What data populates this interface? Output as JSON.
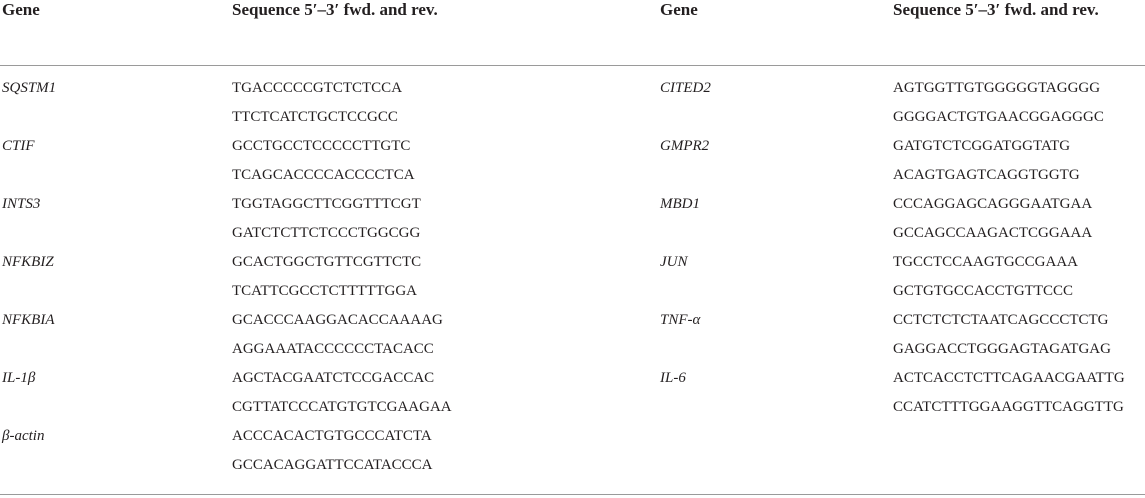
{
  "table": {
    "columns": [
      "Gene",
      "Sequence 5′–3′ fwd. and rev.",
      "Gene",
      "Sequence 5′–3′ fwd. and rev."
    ],
    "left_rows": [
      {
        "gene": "SQSTM1",
        "fwd": "TGACCCCCGTCTCTCCA",
        "rev": "TTCTCATCTGCTCCGCC"
      },
      {
        "gene": "CTIF",
        "fwd": "GCCTGCCTCCCCCTTGTC",
        "rev": "TCAGCACCCCACCCCTCA"
      },
      {
        "gene": "INTS3",
        "fwd": "TGGTAGGCTTCGGTTTCGT",
        "rev": "GATCTCTTCTCCCTGGCGG"
      },
      {
        "gene": "NFKBIZ",
        "fwd": "GCACTGGCTGTTCGTTCTC",
        "rev": "TCATTCGCCTCTTTTTGGA"
      },
      {
        "gene": "NFKBIA",
        "fwd": "GCACCCAAGGACACCAAAAG",
        "rev": "AGGAAATACCCCCCTACACC"
      },
      {
        "gene": "IL-1β",
        "fwd": "AGCTACGAATCTCCGACCAC",
        "rev": "CGTTATCCCATGTGTCGAAGAA"
      },
      {
        "gene": "β-actin",
        "fwd": "ACCCACACTGTGCCCATCTA",
        "rev": "GCCACAGGATTCCATACCCA"
      }
    ],
    "right_rows": [
      {
        "gene": "CITED2",
        "fwd": "AGTGGTTGTGGGGGTAGGGG",
        "rev": "GGGGACTGTGAACGGAGGGC"
      },
      {
        "gene": "GMPR2",
        "fwd": "GATGTCTCGGATGGTATG",
        "rev": "ACAGTGAGTCAGGTGGTG"
      },
      {
        "gene": "MBD1",
        "fwd": "CCCAGGAGCAGGGAATGAA",
        "rev": "GCCAGCCAAGACTCGGAAA"
      },
      {
        "gene": "JUN",
        "fwd": "TGCCTCCAAGTGCCGAAA",
        "rev": "GCTGTGCCACCTGTTCCC"
      },
      {
        "gene": "TNF-α",
        "fwd": "CCTCTCTCTAATCAGCCCTCTG",
        "rev": "GAGGACCTGGGAGTAGATGAG"
      },
      {
        "gene": "IL-6",
        "fwd": "ACTCACCTCTTCAGAACGAATTG",
        "rev": "CCATCTTTGGAAGGTTCAGGTTG"
      }
    ]
  }
}
